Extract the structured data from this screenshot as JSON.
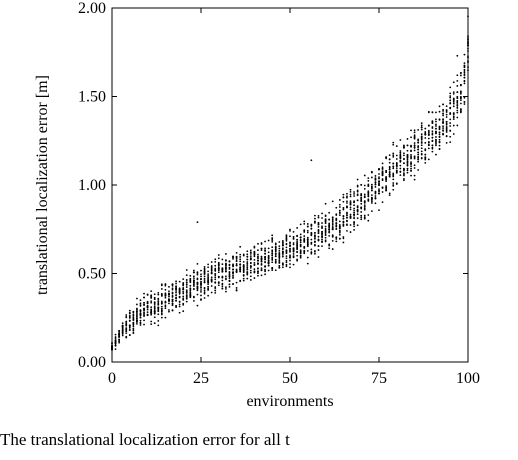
{
  "chart_data": {
    "type": "scatter",
    "title": "",
    "xlabel": "environments",
    "ylabel": "translational localization error [m]",
    "xlim": [
      0,
      100
    ],
    "ylim": [
      0,
      2.0
    ],
    "x_ticks": [
      0,
      25,
      50,
      75,
      100
    ],
    "x_tick_labels": [
      "0",
      "25",
      "50",
      "75",
      "100"
    ],
    "y_ticks": [
      0,
      0.5,
      1.0,
      1.5,
      2.0
    ],
    "y_tick_labels": [
      "0.00",
      "0.50",
      "1.00",
      "1.50",
      "2.00"
    ],
    "grid": false,
    "legend": "none",
    "marker_color": "#000000",
    "points_per_environment": 20,
    "series": [
      {
        "x": [
          0,
          1,
          2,
          3,
          4,
          5,
          6,
          7,
          8,
          9,
          10,
          11,
          12,
          13,
          14,
          15,
          16,
          17,
          18,
          19,
          20,
          21,
          22,
          23,
          24,
          25,
          26,
          27,
          28,
          29,
          30,
          31,
          32,
          33,
          34,
          35,
          36,
          37,
          38,
          39,
          40,
          41,
          42,
          43,
          44,
          45,
          46,
          47,
          48,
          49,
          50,
          51,
          52,
          53,
          54,
          55,
          56,
          57,
          58,
          59,
          60,
          61,
          62,
          63,
          64,
          65,
          66,
          67,
          68,
          69,
          70,
          71,
          72,
          73,
          74,
          75,
          76,
          77,
          78,
          79,
          80,
          81,
          82,
          83,
          84,
          85,
          86,
          87,
          88,
          89,
          90,
          91,
          92,
          93,
          94,
          95,
          96,
          97,
          98,
          99,
          100
        ],
        "median_error": [
          0.08,
          0.11,
          0.15,
          0.18,
          0.2,
          0.22,
          0.24,
          0.26,
          0.28,
          0.29,
          0.3,
          0.31,
          0.32,
          0.33,
          0.34,
          0.35,
          0.36,
          0.37,
          0.38,
          0.39,
          0.4,
          0.41,
          0.42,
          0.43,
          0.44,
          0.45,
          0.46,
          0.47,
          0.48,
          0.49,
          0.5,
          0.5,
          0.51,
          0.51,
          0.52,
          0.52,
          0.53,
          0.53,
          0.54,
          0.55,
          0.55,
          0.56,
          0.56,
          0.57,
          0.58,
          0.59,
          0.6,
          0.61,
          0.62,
          0.63,
          0.64,
          0.65,
          0.66,
          0.67,
          0.68,
          0.69,
          0.7,
          0.71,
          0.72,
          0.73,
          0.75,
          0.76,
          0.77,
          0.79,
          0.8,
          0.82,
          0.84,
          0.86,
          0.87,
          0.89,
          0.91,
          0.93,
          0.95,
          0.97,
          0.99,
          1.01,
          1.03,
          1.05,
          1.07,
          1.09,
          1.1,
          1.12,
          1.14,
          1.15,
          1.17,
          1.19,
          1.21,
          1.23,
          1.25,
          1.27,
          1.29,
          1.31,
          1.33,
          1.35,
          1.37,
          1.39,
          1.42,
          1.46,
          1.52,
          1.62,
          1.78
        ],
        "spread": [
          0.05,
          0.06,
          0.07,
          0.08,
          0.09,
          0.1,
          0.1,
          0.11,
          0.11,
          0.12,
          0.12,
          0.12,
          0.12,
          0.13,
          0.13,
          0.13,
          0.13,
          0.13,
          0.13,
          0.13,
          0.14,
          0.14,
          0.14,
          0.14,
          0.14,
          0.14,
          0.14,
          0.14,
          0.14,
          0.14,
          0.14,
          0.14,
          0.14,
          0.14,
          0.14,
          0.14,
          0.14,
          0.14,
          0.14,
          0.14,
          0.15,
          0.15,
          0.15,
          0.15,
          0.15,
          0.15,
          0.15,
          0.15,
          0.15,
          0.15,
          0.16,
          0.16,
          0.16,
          0.16,
          0.16,
          0.16,
          0.16,
          0.16,
          0.16,
          0.16,
          0.17,
          0.17,
          0.17,
          0.17,
          0.17,
          0.17,
          0.17,
          0.17,
          0.17,
          0.17,
          0.18,
          0.18,
          0.18,
          0.18,
          0.18,
          0.18,
          0.18,
          0.18,
          0.18,
          0.18,
          0.19,
          0.19,
          0.19,
          0.19,
          0.19,
          0.19,
          0.19,
          0.19,
          0.19,
          0.19,
          0.2,
          0.2,
          0.2,
          0.2,
          0.2,
          0.2,
          0.2,
          0.2,
          0.21,
          0.21,
          0.22
        ]
      }
    ],
    "annotations": [
      {
        "x": 24,
        "y": 0.79
      },
      {
        "x": 56,
        "y": 1.14
      },
      {
        "x": 97,
        "y": 1.73
      }
    ]
  },
  "caption": {
    "text": "The translational localization error for all t"
  }
}
